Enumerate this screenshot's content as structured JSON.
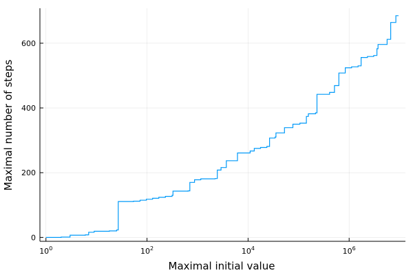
{
  "chart_data": {
    "type": "line",
    "xlabel": "Maximal initial value",
    "ylabel": "Maximal number of steps",
    "xscale": "log10",
    "xlim": [
      0.76,
      13000000
    ],
    "ylim": [
      -12,
      708
    ],
    "grid": true,
    "legend": "none",
    "line_color": "#009AF9",
    "x_ticks": [
      {
        "value": 1,
        "base": "10",
        "exp": "0"
      },
      {
        "value": 100,
        "base": "10",
        "exp": "2"
      },
      {
        "value": 10000,
        "base": "10",
        "exp": "4"
      },
      {
        "value": 1000000,
        "base": "10",
        "exp": "6"
      }
    ],
    "y_ticks": [
      0,
      200,
      400,
      600
    ],
    "series": [
      {
        "x": [
          1,
          2,
          3,
          6,
          7,
          9,
          18,
          25,
          27,
          54,
          73,
          97,
          129,
          171,
          231,
          313,
          327,
          649,
          703,
          871,
          1161,
          2223,
          2463,
          2919,
          3711,
          6171,
          10971,
          13255,
          17647,
          23529,
          26623,
          34239,
          35655,
          52527,
          77031,
          106239,
          142587,
          156159,
          216367,
          230631,
          410011,
          511935,
          626331,
          837799,
          1117065,
          1501353,
          1723519,
          2298025,
          3064033,
          3542887,
          3732423,
          5649499,
          6649279,
          8400511
        ],
        "y": [
          0,
          1,
          7,
          8,
          16,
          19,
          20,
          23,
          111,
          112,
          115,
          118,
          121,
          124,
          127,
          130,
          143,
          144,
          170,
          178,
          181,
          182,
          208,
          216,
          237,
          261,
          267,
          275,
          278,
          281,
          307,
          310,
          323,
          339,
          350,
          353,
          374,
          382,
          385,
          442,
          448,
          469,
          508,
          524,
          527,
          530,
          556,
          559,
          562,
          583,
          596,
          612,
          664,
          685
        ]
      }
    ]
  }
}
